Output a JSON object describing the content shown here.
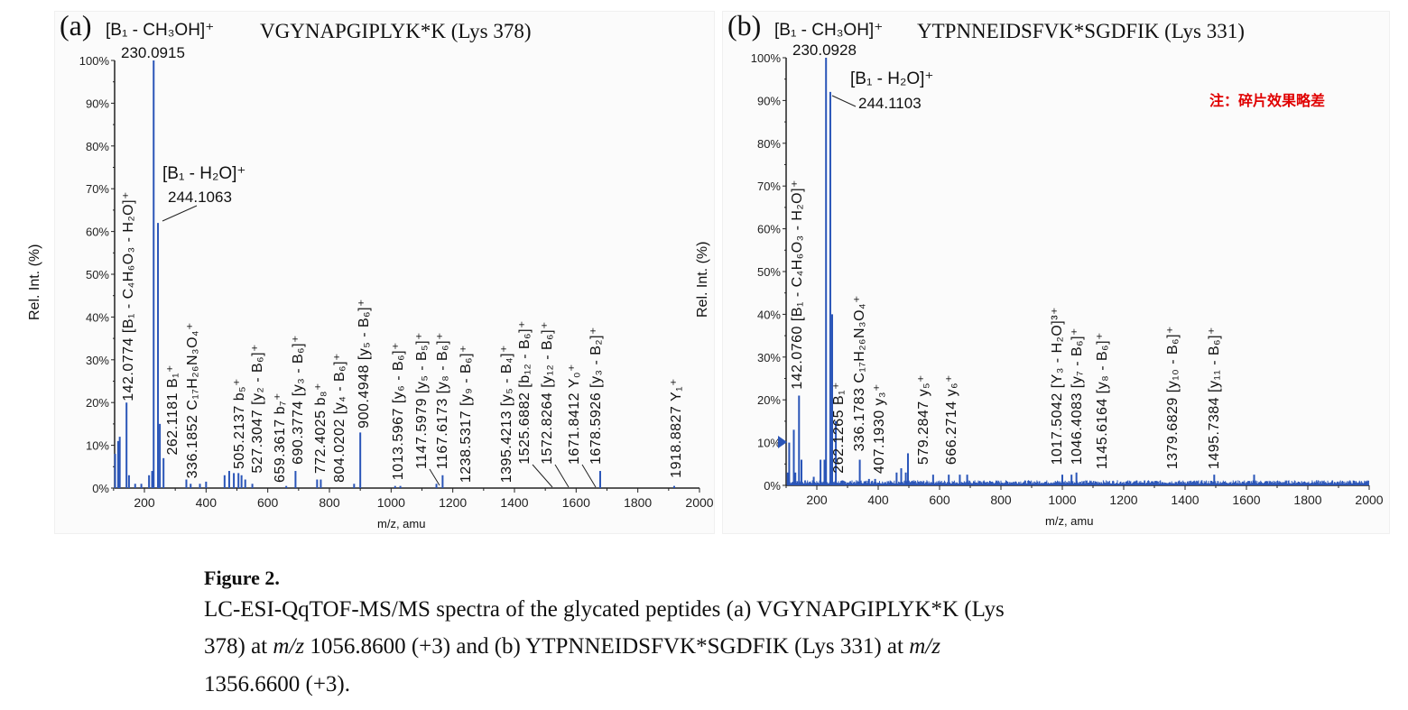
{
  "colors": {
    "peak": "#2a55b8",
    "axis": "#222222",
    "note": "#e00000"
  },
  "note": "注：碎片效果略差",
  "caption": {
    "title": "Figure 2.",
    "line1": "LC-ESI-QqTOF-MS/MS spectra of the glycated peptides (a) VGYNAPGIPLYK*K (Lys",
    "line2_a": "378) at ",
    "mz_italic": "m/z",
    "line2_b": " 1056.8600 (+3) and (b) YTPNNEIDSFVK*SGDFIK (Lys 331) at ",
    "line3": "1356.6600 (+3)."
  },
  "chart_data": [
    {
      "type": "bar",
      "panel": "(a)",
      "title": "VGYNAPGIPLYK*K (Lys 378)",
      "base_peak_ion": "[B₁ - CH₃OH]⁺",
      "base_peak_mz": "230.0915",
      "second_ion": "[B₁ - H₂O]⁺",
      "second_mz": "244.1063",
      "xlabel": "m/z, amu",
      "ylabel": "Rel. Int. (%)",
      "xlim": [
        100,
        2000
      ],
      "ylim": [
        0,
        100
      ],
      "xticks": [
        200,
        400,
        600,
        800,
        1000,
        1200,
        1400,
        1600,
        1800,
        2000
      ],
      "yticks": [
        "0%",
        "10%",
        "20%",
        "30%",
        "40%",
        "50%",
        "60%",
        "70%",
        "80%",
        "90%",
        "100%"
      ],
      "noise_level": 0,
      "peaks": [
        [
          105,
          8
        ],
        [
          115,
          11
        ],
        [
          120,
          12
        ],
        [
          142,
          20
        ],
        [
          150,
          3
        ],
        [
          170,
          1
        ],
        [
          190,
          1
        ],
        [
          215,
          3
        ],
        [
          225,
          4
        ],
        [
          230,
          100
        ],
        [
          244,
          62
        ],
        [
          250,
          15
        ],
        [
          262,
          7
        ],
        [
          336,
          2
        ],
        [
          350,
          1
        ],
        [
          380,
          1
        ],
        [
          400,
          1.5
        ],
        [
          460,
          3
        ],
        [
          475,
          4
        ],
        [
          490,
          3.5
        ],
        [
          505,
          3.5
        ],
        [
          515,
          3
        ],
        [
          527,
          2
        ],
        [
          550,
          1
        ],
        [
          660,
          0.5
        ],
        [
          690,
          4
        ],
        [
          760,
          2
        ],
        [
          772,
          2
        ],
        [
          880,
          1
        ],
        [
          900,
          13
        ],
        [
          1013,
          0.5
        ],
        [
          1030,
          0.5
        ],
        [
          1147,
          1
        ],
        [
          1167,
          3
        ],
        [
          1678,
          4
        ],
        [
          1918,
          0.5
        ]
      ],
      "labels": [
        {
          "mz": "142.0774",
          "ion": "[B₁ - C₄H₆O₃ - H₂O]⁺"
        },
        {
          "mz": "262.1181",
          "ion": "B₁⁺"
        },
        {
          "mz": "336.1852",
          "ion": "C₁₇H₂₆N₃O₄⁺"
        },
        {
          "mz": "505.2137",
          "ion": "b₅⁺"
        },
        {
          "mz": "527.3047",
          "ion": "[y₂ - B₆]⁺"
        },
        {
          "mz": "659.3617",
          "ion": "b₇⁺"
        },
        {
          "mz": "690.3774",
          "ion": "[y₃ - B₆]⁺"
        },
        {
          "mz": "772.4025",
          "ion": "b₈⁺"
        },
        {
          "mz": "804.0202",
          "ion": "[y₄ - B₆]⁺"
        },
        {
          "mz": "900.4948",
          "ion": "[y₅ - B₆]⁺"
        },
        {
          "mz": "1013.5967",
          "ion": "[y₆ - B₆]⁺"
        },
        {
          "mz": "1147.5979",
          "ion": "[y₅ - B₅]⁺"
        },
        {
          "mz": "1167.6173",
          "ion": "[y₈ - B₆]⁺"
        },
        {
          "mz": "1238.5317",
          "ion": "[y₉ - B₆]⁺"
        },
        {
          "mz": "1395.4213",
          "ion": "[y₅ - B₄]⁺"
        },
        {
          "mz": "1525.6882",
          "ion": "[b₁₂ - B₆]⁺"
        },
        {
          "mz": "1572.8264",
          "ion": "[y₁₂ - B₆]⁺"
        },
        {
          "mz": "1671.8412",
          "ion": "Y₀⁺"
        },
        {
          "mz": "1678.5926",
          "ion": "[y₃ - B₂]⁺"
        },
        {
          "mz": "1918.8827",
          "ion": "Y₁⁺"
        }
      ]
    },
    {
      "type": "bar",
      "panel": "(b)",
      "title": "YTPNNEIDSFVK*SGDFIK (Lys 331)",
      "base_peak_ion": "[B₁ - CH₃OH]⁺",
      "base_peak_mz": "230.0928",
      "second_ion": "[B₁ - H₂O]⁺",
      "second_mz": "244.1103",
      "xlabel": "m/z, amu",
      "ylabel": "Rel. Int. (%)",
      "xlim": [
        100,
        2000
      ],
      "ylim": [
        0,
        100
      ],
      "xticks": [
        200,
        400,
        600,
        800,
        1000,
        1200,
        1400,
        1600,
        1800,
        2000
      ],
      "yticks": [
        "0%",
        "10%",
        "20%",
        "30%",
        "40%",
        "50%",
        "60%",
        "70%",
        "80%",
        "90%",
        "100%"
      ],
      "noise_level": 1,
      "peaks": [
        [
          105,
          3
        ],
        [
          110,
          10
        ],
        [
          125,
          13
        ],
        [
          130,
          3
        ],
        [
          142,
          21
        ],
        [
          150,
          6
        ],
        [
          190,
          2
        ],
        [
          212,
          6
        ],
        [
          225,
          6
        ],
        [
          230,
          100
        ],
        [
          244,
          92
        ],
        [
          250,
          40
        ],
        [
          262,
          15
        ],
        [
          340,
          6
        ],
        [
          370,
          1.5
        ],
        [
          390,
          1.5
        ],
        [
          460,
          3
        ],
        [
          475,
          4
        ],
        [
          490,
          3
        ],
        [
          497,
          7.5
        ],
        [
          579,
          2.5
        ],
        [
          630,
          2.5
        ],
        [
          666,
          2.5
        ],
        [
          690,
          2.5
        ],
        [
          1000,
          2.5
        ],
        [
          1030,
          2.5
        ],
        [
          1046,
          3
        ],
        [
          1495,
          2.5
        ],
        [
          1625,
          2.5
        ]
      ],
      "labels": [
        {
          "mz": "142.0760",
          "ion": "[B₁ - C₄H₆O₃ - H₂O]⁺"
        },
        {
          "mz": "262.1265",
          "ion": "B₁⁺"
        },
        {
          "mz": "336.1783",
          "ion": "C₁₇H₂₆N₃O₄⁺"
        },
        {
          "mz": "407.1930",
          "ion": "y₃⁺"
        },
        {
          "mz": "579.2847",
          "ion": "y₅⁺"
        },
        {
          "mz": "666.2714",
          "ion": "y₆⁺"
        },
        {
          "mz": "1017.5042",
          "ion": "[Y₃ - H₂O]³⁺"
        },
        {
          "mz": "1046.4083",
          "ion": "[y₇ - B₆]⁺"
        },
        {
          "mz": "1145.6164",
          "ion": "[y₈ - B₆]⁺"
        },
        {
          "mz": "1379.6829",
          "ion": "[y₁₀ - B₆]⁺"
        },
        {
          "mz": "1495.7384",
          "ion": "[y₁₁ - B₆]⁺"
        }
      ]
    }
  ]
}
